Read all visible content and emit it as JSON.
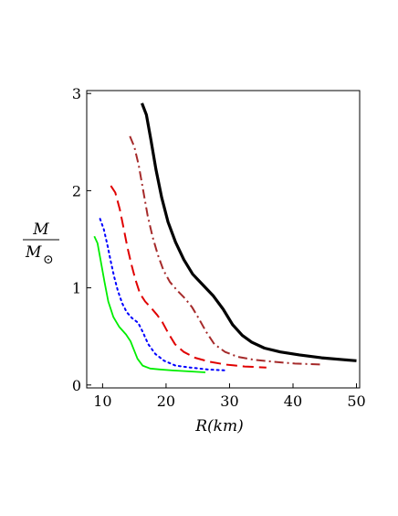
{
  "chart_data": {
    "type": "line",
    "title": "",
    "xlabel": "R(km)",
    "ylabel": {
      "numerator": "M",
      "denominator_base": "M",
      "denominator_sub": "⊙"
    },
    "xlim": [
      7.5,
      50.5
    ],
    "ylim": [
      -0.03,
      3.03
    ],
    "xticks": [
      10,
      20,
      30,
      40,
      50
    ],
    "yticks": [
      0,
      1,
      2,
      3
    ],
    "xtick_labels": [
      "10",
      "20",
      "30",
      "40",
      "50"
    ],
    "ytick_labels": [
      "0",
      "1",
      "2",
      "3"
    ],
    "grid": false,
    "legend": "none",
    "series": [
      {
        "color": "#00ee00",
        "dash": "solid",
        "width": 1.8,
        "x": [
          8.7,
          9.2,
          9.7,
          10.3,
          10.9,
          11.7,
          12.6,
          13.7,
          14.4,
          15.0,
          15.5,
          16.3,
          17.5,
          19.0,
          21.0,
          23.5,
          26.2
        ],
        "y": [
          1.53,
          1.46,
          1.28,
          1.06,
          0.86,
          0.7,
          0.6,
          0.52,
          0.45,
          0.35,
          0.27,
          0.2,
          0.17,
          0.16,
          0.15,
          0.14,
          0.13
        ]
      },
      {
        "color": "#0000ff",
        "dash": "dotted",
        "width": 2.0,
        "x": [
          9.6,
          10.2,
          10.8,
          11.3,
          11.8,
          12.4,
          13.1,
          13.8,
          14.6,
          15.6,
          16.3,
          17.2,
          18.3,
          19.7,
          21.5,
          23.8,
          26.5,
          29.5
        ],
        "y": [
          1.71,
          1.6,
          1.43,
          1.27,
          1.12,
          0.97,
          0.84,
          0.75,
          0.69,
          0.64,
          0.55,
          0.42,
          0.32,
          0.25,
          0.2,
          0.18,
          0.16,
          0.15
        ]
      },
      {
        "color": "#e00000",
        "dash": "dashed",
        "width": 2.0,
        "x": [
          11.3,
          12.0,
          12.7,
          13.3,
          13.9,
          14.5,
          15.2,
          15.9,
          16.7,
          17.7,
          18.6,
          19.4,
          20.3,
          21.4,
          22.8,
          24.6,
          26.8,
          29.4,
          32.4,
          35.8
        ],
        "y": [
          2.05,
          1.98,
          1.81,
          1.62,
          1.42,
          1.25,
          1.08,
          0.94,
          0.86,
          0.79,
          0.72,
          0.65,
          0.54,
          0.42,
          0.34,
          0.28,
          0.24,
          0.21,
          0.19,
          0.18
        ]
      },
      {
        "color": "#a52a2a",
        "dash": "dashdot",
        "width": 2.0,
        "x": [
          14.3,
          15.0,
          15.7,
          16.4,
          17.1,
          17.9,
          18.7,
          19.6,
          20.6,
          21.8,
          23.0,
          24.1,
          25.1,
          26.3,
          27.6,
          29.3,
          31.3,
          33.8,
          36.8,
          40.3,
          44.7
        ],
        "y": [
          2.56,
          2.45,
          2.26,
          2.0,
          1.74,
          1.52,
          1.34,
          1.18,
          1.06,
          0.97,
          0.89,
          0.8,
          0.69,
          0.55,
          0.42,
          0.34,
          0.29,
          0.26,
          0.24,
          0.22,
          0.21
        ]
      },
      {
        "color": "#000000",
        "dash": "solid",
        "width": 3.2,
        "x": [
          16.2,
          16.9,
          17.6,
          18.4,
          19.3,
          20.3,
          21.5,
          22.8,
          24.2,
          25.8,
          27.4,
          29.0,
          30.5,
          32.0,
          33.5,
          35.5,
          38.0,
          41.0,
          44.5,
          48.0,
          50.0
        ],
        "y": [
          2.9,
          2.78,
          2.53,
          2.22,
          1.93,
          1.68,
          1.47,
          1.29,
          1.14,
          1.03,
          0.92,
          0.78,
          0.62,
          0.51,
          0.44,
          0.38,
          0.34,
          0.31,
          0.28,
          0.26,
          0.25
        ]
      }
    ]
  }
}
